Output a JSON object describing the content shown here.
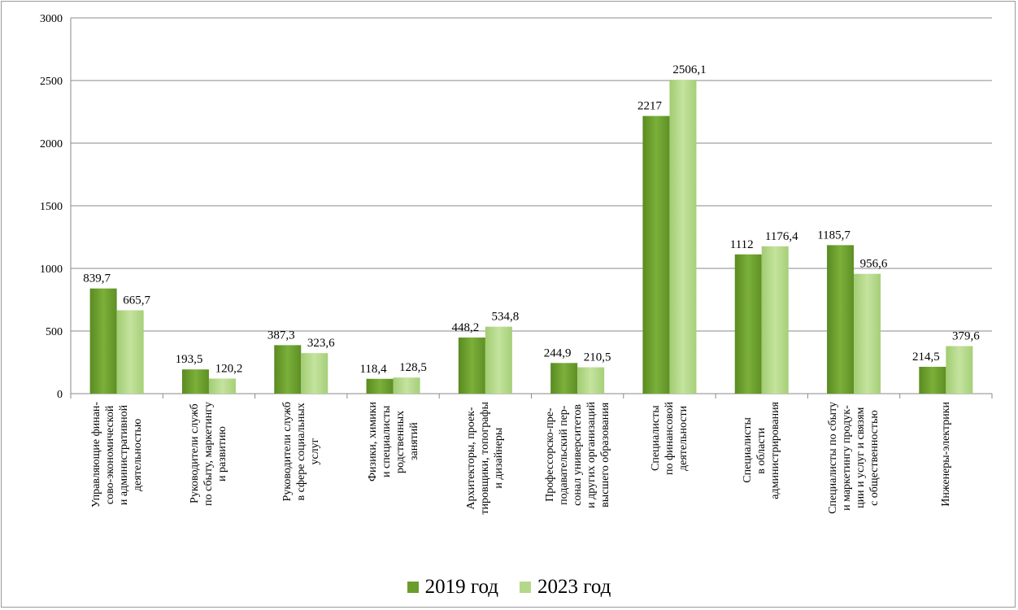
{
  "chart_data": {
    "type": "bar",
    "title": "",
    "xlabel": "",
    "ylabel": "",
    "ylim": [
      0,
      3000
    ],
    "yticks": [
      "0",
      "500",
      "1000",
      "1500",
      "2000",
      "2500",
      "3000"
    ],
    "grid": true,
    "legend_position": "bottom",
    "categories": [
      [
        "Управляющие финан-",
        "сово-экономической",
        "и административной",
        "деятельностью"
      ],
      [
        "Руководители служб",
        "по сбыту, маркетингу",
        "и развитию"
      ],
      [
        "Руководители служб",
        "в сфере социальных",
        "услуг"
      ],
      [
        "Физики, химики",
        "и специалисты",
        "родственных",
        "занятий"
      ],
      [
        "Архитекторы, проек-",
        "тировщики, топографы",
        "и дизайнеры"
      ],
      [
        "Профессорско-пре-",
        "подавательский пер-",
        "сонал университетов",
        "и других организаций",
        "высшего образования"
      ],
      [
        "Специалисты",
        "по финансовой",
        "деятельности"
      ],
      [
        "Специалисты",
        "в области",
        "администрирования"
      ],
      [
        "Специалисты по сбыту",
        "и маркетингу продук-",
        "ции и услуг и связям",
        "с общественностью"
      ],
      [
        "Инженеры-электрики"
      ]
    ],
    "series": [
      {
        "name": "2019 год",
        "color": "#6c9c2c",
        "values": [
          839.7,
          193.5,
          387.3,
          118.4,
          448.2,
          244.9,
          2217,
          1112,
          1185.7,
          214.5
        ],
        "labels": [
          "839,7",
          "193,5",
          "387,3",
          "118,4",
          "448,2",
          "244,9",
          "2217",
          "1112",
          "1185,7",
          "214,5"
        ]
      },
      {
        "name": "2023 год",
        "color": "#b4d88a",
        "values": [
          665.7,
          120.2,
          323.6,
          128.5,
          534.8,
          210.5,
          2506.1,
          1176.4,
          956.6,
          379.6
        ],
        "labels": [
          "665,7",
          "120,2",
          "323,6",
          "128,5",
          "534,8",
          "210,5",
          "2506,1",
          "1176,4",
          "956,6",
          "379,6"
        ]
      }
    ]
  }
}
